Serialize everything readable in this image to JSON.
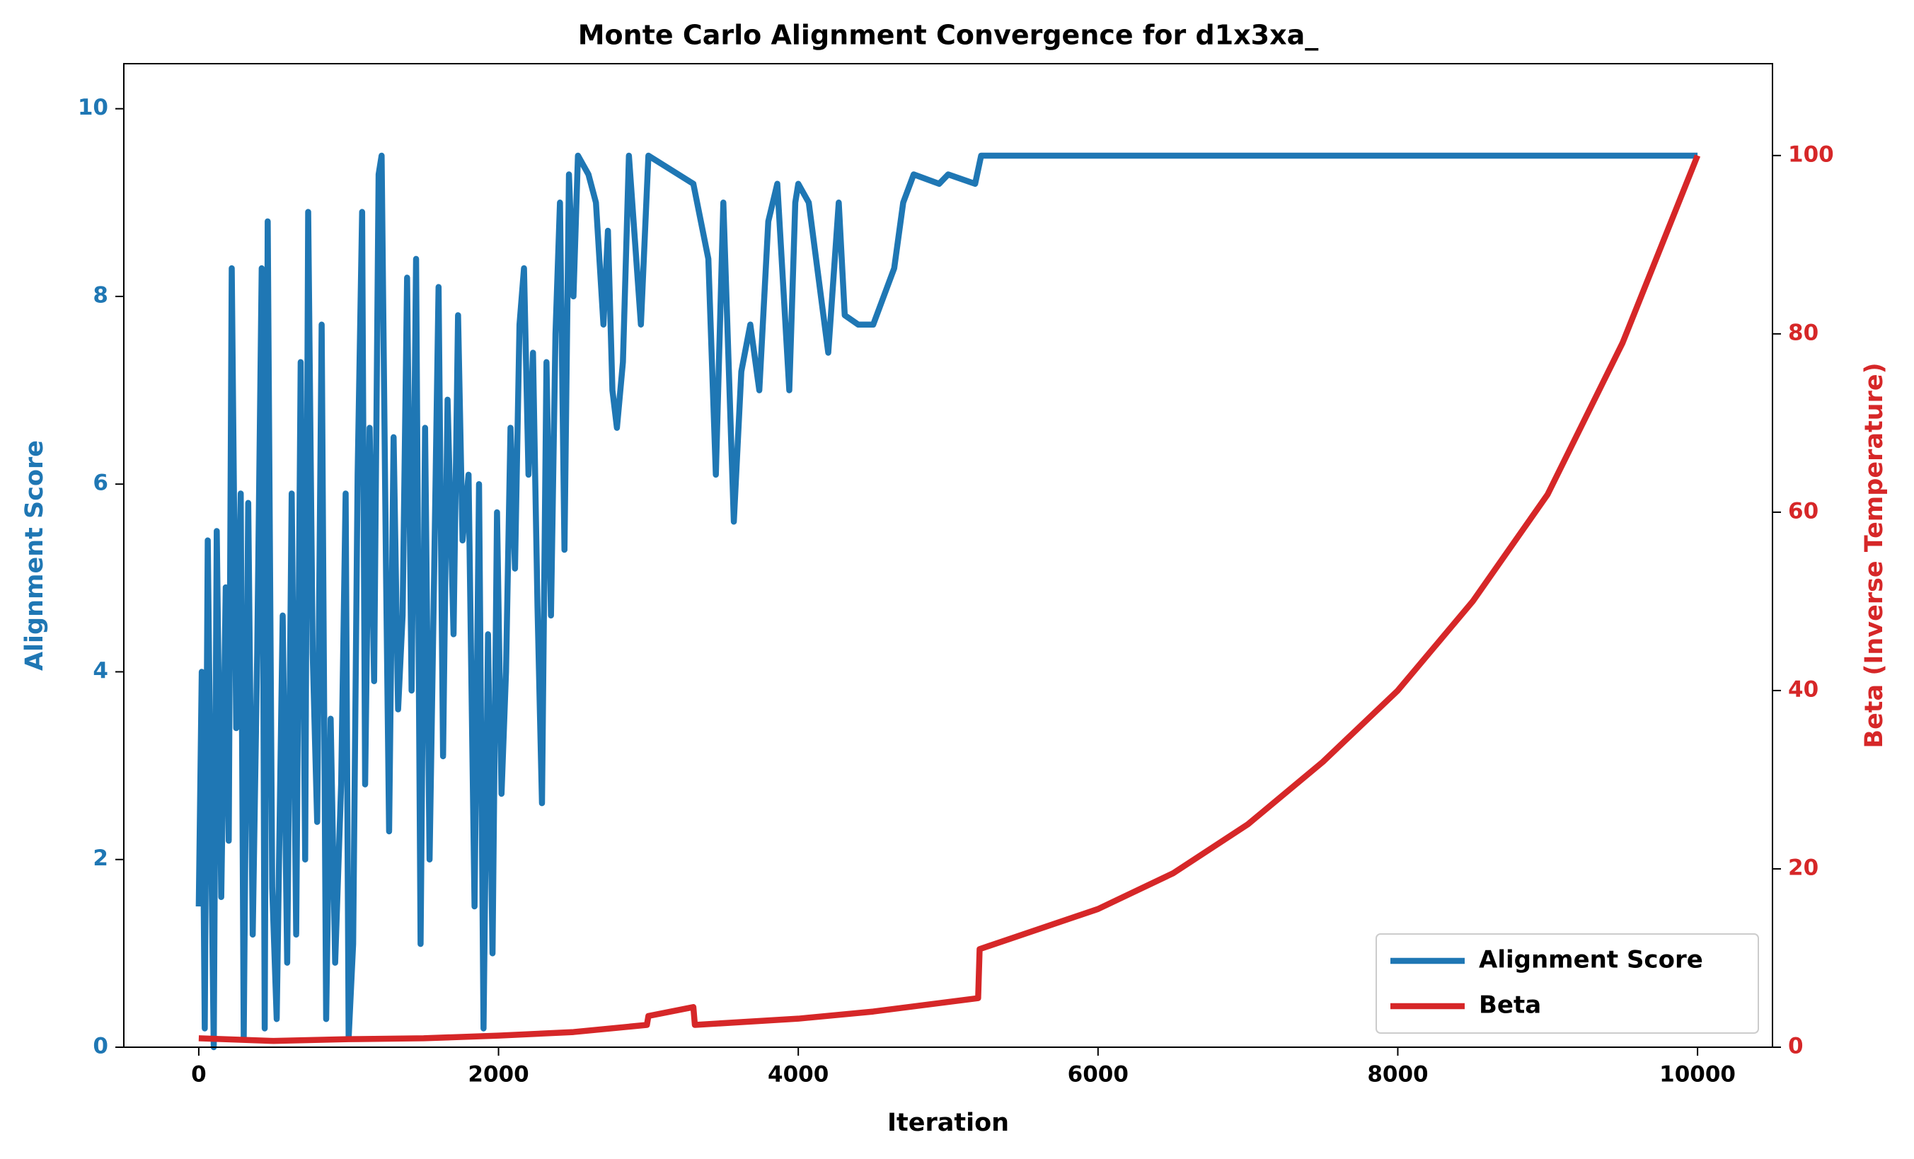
{
  "chart_data": {
    "type": "line",
    "title": "Monte Carlo Alignment Convergence for d1x3xa_",
    "xlabel": "Iteration",
    "ylabel": "Alignment Score",
    "y2label": "Beta (Inverse Temperature)",
    "xlim": [
      -500,
      10500
    ],
    "xticks": [
      0,
      2000,
      4000,
      6000,
      8000,
      10000
    ],
    "ylim": [
      0,
      10.48
    ],
    "yticks": [
      0,
      2,
      4,
      6,
      8,
      10
    ],
    "y2lim": [
      0,
      110.3
    ],
    "y2ticks": [
      0,
      20,
      40,
      60,
      80,
      100
    ],
    "legend": "lower right",
    "series": [
      {
        "name": "Alignment Score",
        "color": "#1f77b4",
        "x": [
          0,
          20,
          40,
          60,
          80,
          100,
          120,
          150,
          180,
          200,
          220,
          250,
          280,
          300,
          330,
          360,
          390,
          420,
          440,
          460,
          490,
          520,
          560,
          590,
          620,
          650,
          680,
          710,
          730,
          760,
          790,
          820,
          850,
          880,
          910,
          950,
          980,
          1000,
          1030,
          1060,
          1090,
          1110,
          1140,
          1170,
          1200,
          1220,
          1250,
          1270,
          1300,
          1330,
          1360,
          1390,
          1420,
          1450,
          1480,
          1510,
          1540,
          1570,
          1600,
          1630,
          1660,
          1700,
          1730,
          1760,
          1800,
          1840,
          1870,
          1900,
          1930,
          1960,
          1990,
          2020,
          2050,
          2080,
          2110,
          2140,
          2170,
          2200,
          2230,
          2260,
          2290,
          2320,
          2350,
          2380,
          2410,
          2440,
          2470,
          2500,
          2530,
          2600,
          2650,
          2700,
          2730,
          2760,
          2790,
          2830,
          2870,
          2910,
          2950,
          3000,
          3300,
          3400,
          3450,
          3500,
          3570,
          3620,
          3680,
          3740,
          3800,
          3860,
          3940,
          3980,
          4000,
          4070,
          4200,
          4270,
          4310,
          4400,
          4500,
          4570,
          4640,
          4700,
          4770,
          4940,
          5000,
          5180,
          5220,
          10000
        ],
        "values": [
          1.5,
          4,
          0.2,
          5.4,
          2.5,
          0,
          5.5,
          1.6,
          4.9,
          2.2,
          8.3,
          3.4,
          5.9,
          0.1,
          5.8,
          1.2,
          4.2,
          8.3,
          0.2,
          8.8,
          1.7,
          0.3,
          4.6,
          0.9,
          5.9,
          1.2,
          7.3,
          2.0,
          8.9,
          4.2,
          2.4,
          7.7,
          0.3,
          3.5,
          0.9,
          2.8,
          5.9,
          0.1,
          1.1,
          6.1,
          8.9,
          2.8,
          6.6,
          3.9,
          9.3,
          9.5,
          5.0,
          2.3,
          6.5,
          3.6,
          4.6,
          8.2,
          3.8,
          8.4,
          1.1,
          6.6,
          2.0,
          5.0,
          8.1,
          3.1,
          6.9,
          4.4,
          7.8,
          5.4,
          6.1,
          1.5,
          6.0,
          0.2,
          4.4,
          1.0,
          5.7,
          2.7,
          4.0,
          6.6,
          5.1,
          7.7,
          8.3,
          6.1,
          7.4,
          4.7,
          2.6,
          7.3,
          4.6,
          7.6,
          9.0,
          5.3,
          9.3,
          8.0,
          9.5,
          9.3,
          9.0,
          7.7,
          8.7,
          7.0,
          6.6,
          7.3,
          9.5,
          8.6,
          7.7,
          9.5,
          9.2,
          8.4,
          6.1,
          9.0,
          5.6,
          7.2,
          7.7,
          7.0,
          8.8,
          9.2,
          7.0,
          9.0,
          9.2,
          9.0,
          7.4,
          9.0,
          7.8,
          7.7,
          7.7,
          8.0,
          8.3,
          9.0,
          9.3,
          9.2,
          9.3,
          9.2,
          9.5,
          9.5
        ]
      },
      {
        "name": "Beta",
        "color": "#d62728",
        "axis": "y2",
        "x": [
          0,
          500,
          1000,
          1500,
          2000,
          2500,
          2990,
          3000,
          3300,
          3310,
          4000,
          4500,
          5200,
          5210,
          6000,
          6500,
          7000,
          7500,
          8000,
          8500,
          9000,
          9500,
          10000
        ],
        "values": [
          1,
          0.7,
          0.9,
          1,
          1.3,
          1.7,
          2.5,
          3.5,
          4.5,
          2.5,
          3.2,
          4,
          5.5,
          11,
          15.5,
          19.5,
          25,
          32,
          40,
          50,
          62,
          79,
          100
        ]
      }
    ]
  }
}
